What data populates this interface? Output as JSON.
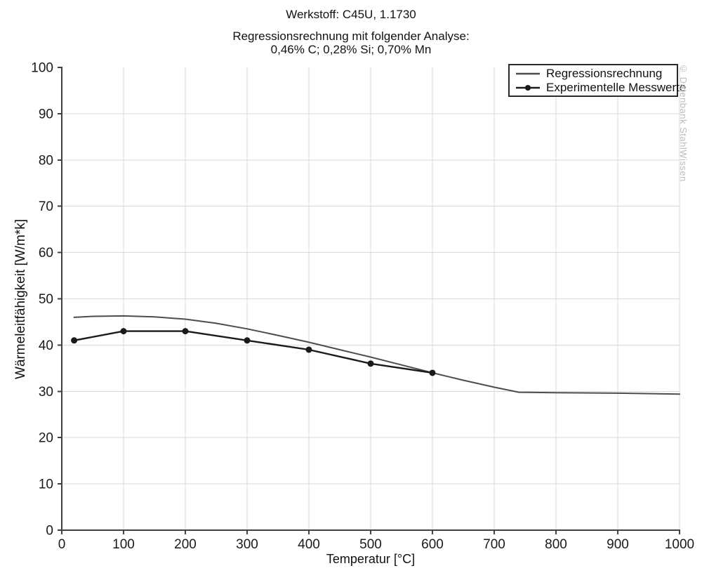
{
  "header": {
    "title": "Werkstoff: C45U, 1.1730",
    "subtitle_line1": "Regressionsrechnung mit folgender Analyse:",
    "subtitle_line2": "0,46% C; 0,28% Si; 0,70% Mn"
  },
  "watermark": {
    "text": "© Datenbank StahlWissen",
    "color": "#bdbdbd"
  },
  "legend": {
    "items": [
      {
        "label": "Regressionsrechnung",
        "marker": "line"
      },
      {
        "label": "Experimentelle Messwerte",
        "marker": "line-dot"
      }
    ]
  },
  "chart_data": {
    "type": "line",
    "title": "Werkstoff: C45U, 1.1730",
    "subtitle": "Regressionsrechnung mit folgender Analyse: 0,46% C; 0,28% Si; 0,70% Mn",
    "xlabel": "Temperatur [°C]",
    "ylabel": "Wärmeleitfähigkeit [W/m*k]",
    "xlim": [
      0,
      1000
    ],
    "ylim": [
      0,
      100
    ],
    "xticks": [
      0,
      100,
      200,
      300,
      400,
      500,
      600,
      700,
      800,
      900,
      1000
    ],
    "yticks": [
      0,
      10,
      20,
      30,
      40,
      50,
      60,
      70,
      80,
      90,
      100
    ],
    "grid": true,
    "legend_position": "top-right",
    "colors": {
      "grid": "#d9d9d9",
      "axis": "#404040",
      "tick_label": "#1a1a1a",
      "regression": "#4d4d4d",
      "experimental": "#1a1a1a"
    },
    "series": [
      {
        "name": "Regressionsrechnung",
        "marker": "none",
        "color": "#4d4d4d",
        "width": 2,
        "points": [
          [
            20,
            46.0
          ],
          [
            50,
            46.2
          ],
          [
            100,
            46.3
          ],
          [
            150,
            46.1
          ],
          [
            200,
            45.6
          ],
          [
            250,
            44.7
          ],
          [
            300,
            43.5
          ],
          [
            350,
            42.1
          ],
          [
            400,
            40.6
          ],
          [
            450,
            39.0
          ],
          [
            500,
            37.4
          ],
          [
            550,
            35.7
          ],
          [
            600,
            34.0
          ],
          [
            650,
            32.4
          ],
          [
            700,
            30.9
          ],
          [
            740,
            29.8
          ],
          [
            800,
            29.7
          ],
          [
            900,
            29.6
          ],
          [
            1000,
            29.4
          ]
        ]
      },
      {
        "name": "Experimentelle Messwerte",
        "marker": "circle",
        "color": "#1a1a1a",
        "width": 2.4,
        "points": [
          [
            20,
            41
          ],
          [
            100,
            43
          ],
          [
            200,
            43
          ],
          [
            300,
            41
          ],
          [
            400,
            39
          ],
          [
            500,
            36
          ],
          [
            600,
            34
          ]
        ]
      }
    ]
  }
}
